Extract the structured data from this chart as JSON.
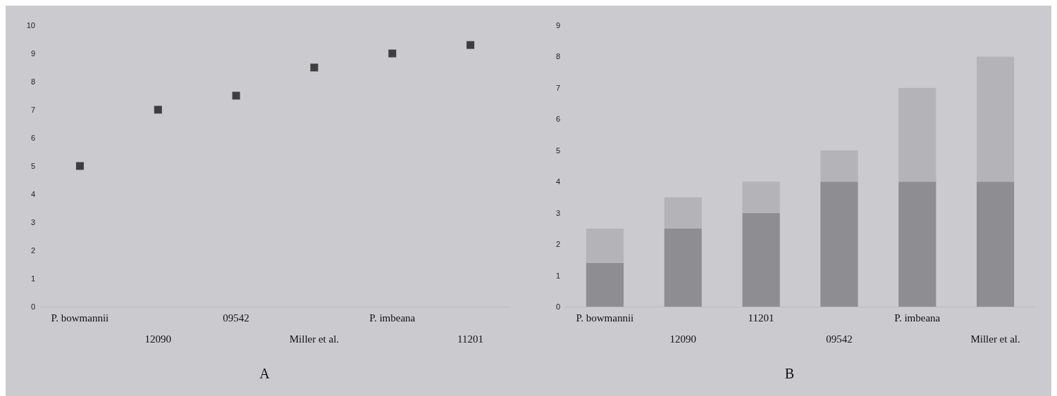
{
  "chart_data": [
    {
      "type": "scatter",
      "title": "A",
      "categories": [
        "P. bowmannii",
        "12090",
        "09542",
        "Miller et al.",
        "P. imbeana",
        "11201"
      ],
      "values": [
        5,
        7,
        7.5,
        8.5,
        9,
        9.3
      ],
      "color": "#1a1a1a",
      "marker": "square",
      "ylim": [
        0,
        10
      ],
      "yticks": [
        0,
        1,
        2,
        3,
        4,
        5,
        6,
        7,
        8,
        9,
        10
      ],
      "grid": false
    },
    {
      "type": "bar",
      "title": "B",
      "stacked": true,
      "categories": [
        "P. bowmannii",
        "12090",
        "11201",
        "09542",
        "P. imbeana",
        "Miller et al."
      ],
      "series": [
        {
          "color": "#8e8e92",
          "values": [
            1.4,
            2.5,
            3,
            4,
            4,
            4
          ]
        },
        {
          "color": "#b4b4b8",
          "values": [
            1.1,
            1,
            1,
            1,
            3,
            4
          ]
        }
      ],
      "ylim": [
        0,
        9
      ],
      "yticks": [
        0,
        1,
        2,
        3,
        4,
        5,
        6,
        7,
        8,
        9
      ],
      "grid": false
    }
  ]
}
